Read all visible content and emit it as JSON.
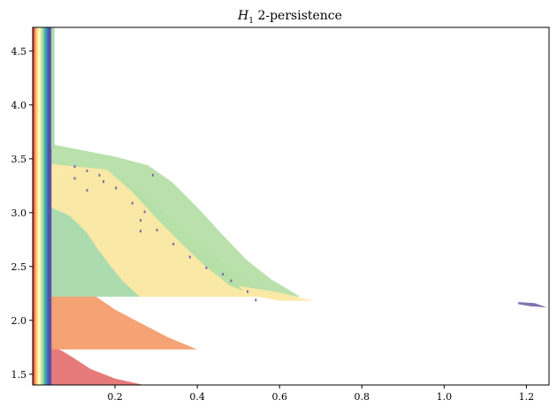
{
  "chart_data": {
    "type": "area",
    "title": {
      "symbol": "H",
      "subscript": "1",
      "rest": " 2-persistence"
    },
    "xlabel": "",
    "ylabel": "",
    "xlim": [
      0.0,
      1.255
    ],
    "ylim": [
      1.4,
      4.72
    ],
    "x_ticks": [
      0.2,
      0.4,
      0.6,
      0.8,
      1.0,
      1.2
    ],
    "x_tick_labels": [
      "0.2",
      "0.4",
      "0.6",
      "0.8",
      "1.0",
      "1.2"
    ],
    "y_ticks": [
      1.5,
      2.0,
      2.5,
      3.0,
      3.5,
      4.0,
      4.5
    ],
    "y_tick_labels": [
      "1.5",
      "2.0",
      "2.5",
      "3.0",
      "3.5",
      "4.0",
      "4.5"
    ],
    "grid": false,
    "legend": "none",
    "colors": {
      "red": "#e57373",
      "orange": "#f49d6e",
      "light_orange": "#fdd78e",
      "yellow": "#fee8a5",
      "green": "#b6dfa6",
      "mint": "#a6dbb0",
      "purple": "#7b6bad"
    },
    "series": [
      {
        "color": "red",
        "polygon": [
          [
            0.04,
            1.4
          ],
          [
            0.27,
            1.4
          ],
          [
            0.2,
            1.46
          ],
          [
            0.14,
            1.55
          ],
          [
            0.1,
            1.65
          ],
          [
            0.07,
            1.72
          ],
          [
            0.04,
            1.76
          ]
        ]
      },
      {
        "color": "orange",
        "polygon": [
          [
            0.04,
            1.73
          ],
          [
            0.4,
            1.73
          ],
          [
            0.33,
            1.84
          ],
          [
            0.27,
            1.96
          ],
          [
            0.2,
            2.1
          ],
          [
            0.15,
            2.23
          ],
          [
            0.04,
            2.25
          ]
        ]
      },
      {
        "color": "light_orange",
        "polygon": [
          [
            0.04,
            2.22
          ],
          [
            0.26,
            2.22
          ],
          [
            0.22,
            2.36
          ],
          [
            0.19,
            2.5
          ],
          [
            0.16,
            2.65
          ],
          [
            0.13,
            2.82
          ],
          [
            0.09,
            2.97
          ],
          [
            0.04,
            3.04
          ]
        ]
      },
      {
        "color": "mint",
        "polygon": [
          [
            0.04,
            3.4
          ],
          [
            0.18,
            3.38
          ],
          [
            0.26,
            3.2
          ],
          [
            0.32,
            3.0
          ],
          [
            0.38,
            2.8
          ],
          [
            0.44,
            2.6
          ],
          [
            0.5,
            2.42
          ],
          [
            0.56,
            2.29
          ],
          [
            0.63,
            2.22
          ],
          [
            0.04,
            2.22
          ]
        ]
      },
      {
        "color": "green",
        "polygon": [
          [
            0.04,
            3.64
          ],
          [
            0.12,
            3.58
          ],
          [
            0.2,
            3.52
          ],
          [
            0.28,
            3.44
          ],
          [
            0.34,
            3.28
          ],
          [
            0.4,
            3.05
          ],
          [
            0.46,
            2.8
          ],
          [
            0.52,
            2.56
          ],
          [
            0.58,
            2.38
          ],
          [
            0.65,
            2.22
          ],
          [
            0.48,
            2.22
          ],
          [
            0.38,
            2.45
          ],
          [
            0.32,
            2.7
          ],
          [
            0.27,
            2.95
          ],
          [
            0.2,
            3.3
          ],
          [
            0.04,
            3.45
          ]
        ]
      },
      {
        "color": "yellow",
        "polygon": [
          [
            0.045,
            3.45
          ],
          [
            0.18,
            3.4
          ],
          [
            0.24,
            3.2
          ],
          [
            0.3,
            2.95
          ],
          [
            0.36,
            2.72
          ],
          [
            0.42,
            2.5
          ],
          [
            0.48,
            2.32
          ],
          [
            0.55,
            2.22
          ],
          [
            0.26,
            2.22
          ],
          [
            0.22,
            2.36
          ],
          [
            0.19,
            2.5
          ],
          [
            0.16,
            2.65
          ],
          [
            0.13,
            2.82
          ],
          [
            0.09,
            2.97
          ],
          [
            0.045,
            3.05
          ]
        ]
      },
      {
        "color": "yellow",
        "polygon": [
          [
            0.5,
            2.32
          ],
          [
            0.6,
            2.26
          ],
          [
            0.68,
            2.18
          ],
          [
            0.6,
            2.18
          ],
          [
            0.52,
            2.24
          ]
        ]
      },
      {
        "color": "purple",
        "polygon": [
          [
            1.18,
            2.17
          ],
          [
            1.22,
            2.16
          ],
          [
            1.25,
            2.12
          ],
          [
            1.21,
            2.13
          ],
          [
            1.18,
            2.15
          ]
        ]
      }
    ],
    "marks": [
      [
        0.1,
        3.44
      ],
      [
        0.13,
        3.4
      ],
      [
        0.16,
        3.36
      ],
      [
        0.1,
        3.33
      ],
      [
        0.2,
        3.24
      ],
      [
        0.24,
        3.1
      ],
      [
        0.27,
        3.02
      ],
      [
        0.26,
        2.94
      ],
      [
        0.3,
        2.85
      ],
      [
        0.34,
        2.72
      ],
      [
        0.38,
        2.6
      ],
      [
        0.42,
        2.5
      ],
      [
        0.46,
        2.44
      ],
      [
        0.48,
        2.38
      ],
      [
        0.52,
        2.28
      ],
      [
        0.54,
        2.2
      ],
      [
        0.29,
        3.36
      ],
      [
        0.13,
        3.22
      ],
      [
        0.17,
        3.3
      ],
      [
        0.26,
        2.84
      ]
    ],
    "band_colors": [
      "#e7443a",
      "#f7a562",
      "#fddf8b",
      "#fefebe",
      "#d8ef9b",
      "#9ad8a4",
      "#55b0ad",
      "#3d88bc",
      "#4a57a6",
      "#5e4fa2"
    ]
  }
}
